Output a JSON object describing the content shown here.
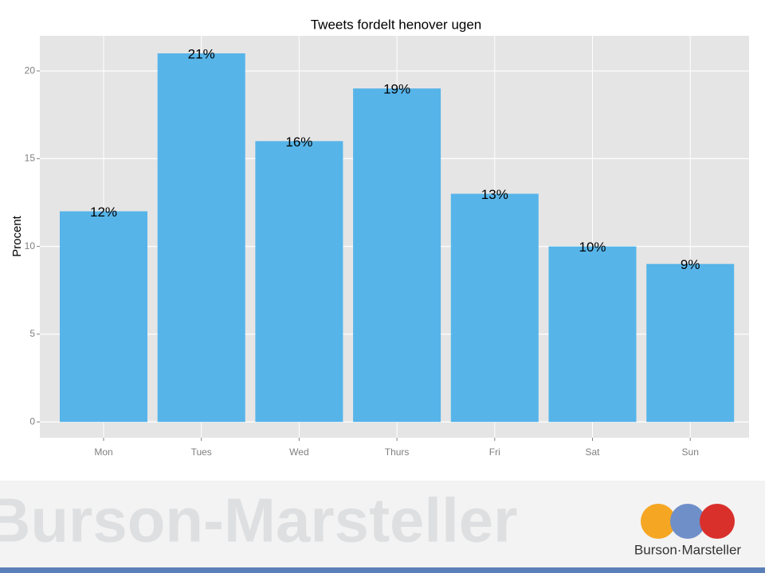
{
  "chart_data": {
    "type": "bar",
    "title": "Tweets fordelt henover ugen",
    "y_label": "Procent",
    "categories": [
      "Mon",
      "Tues",
      "Wed",
      "Thurs",
      "Fri",
      "Sat",
      "Sun"
    ],
    "values": [
      12,
      21,
      16,
      19,
      13,
      10,
      9
    ],
    "value_labels": [
      "12%",
      "21%",
      "16%",
      "19%",
      "13%",
      "10%",
      "9%"
    ],
    "color": "#56b4e9",
    "ylim": [
      -0.9,
      22
    ],
    "yticks": [
      0,
      5,
      10,
      15,
      20
    ],
    "grid": true
  },
  "footer": {
    "watermark": "Burson-Marsteller",
    "logo_text": "Burson·Marsteller"
  }
}
